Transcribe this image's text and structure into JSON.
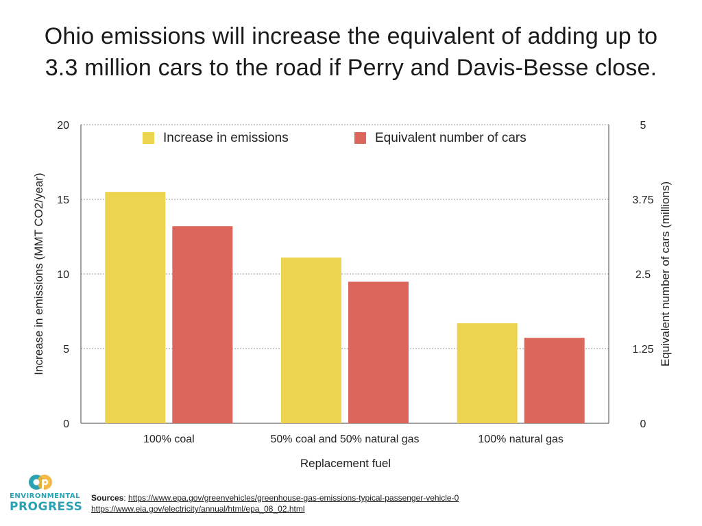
{
  "title": {
    "line1": "Ohio emissions will increase the equivalent of adding up to",
    "line2": "3.3 million cars to the road if Perry and Davis-Besse close."
  },
  "chart_data": {
    "type": "bar",
    "categories": [
      "100% coal",
      "50% coal and 50% natural gas",
      "100% natural gas"
    ],
    "series": [
      {
        "name": "Increase in emissions",
        "axis": "left",
        "color": "#ecd44e",
        "values": [
          15.5,
          11.1,
          6.7
        ]
      },
      {
        "name": "Equivalent number of cars",
        "axis": "right",
        "color": "#dd665c",
        "values": [
          3.3,
          2.37,
          1.43
        ]
      }
    ],
    "xlabel": "Replacement fuel",
    "ylabel": "Increase in emissions (MMT CO2/year)",
    "ylabel_right": "Equivalent number of cars (millions)",
    "ylim": [
      0,
      20
    ],
    "ylim_right": [
      0,
      5
    ],
    "yticks": [
      "0",
      "5",
      "10",
      "15",
      "20"
    ],
    "yticks_right": [
      "0",
      "1.25",
      "2.5",
      "3.75",
      "5"
    ],
    "grid": true,
    "legend": "top-center"
  },
  "logo": {
    "line1": "ENVIRONMENTAL",
    "line2": "PROGRESS",
    "brand_color": "#2aa2b4"
  },
  "sources": {
    "label": "Sources",
    "url1": "https://www.epa.gov/greenvehicles/greenhouse-gas-emissions-typical-passenger-vehicle-0",
    "url2": "https://www.eia.gov/electricity/annual/html/epa_08_02.html"
  }
}
